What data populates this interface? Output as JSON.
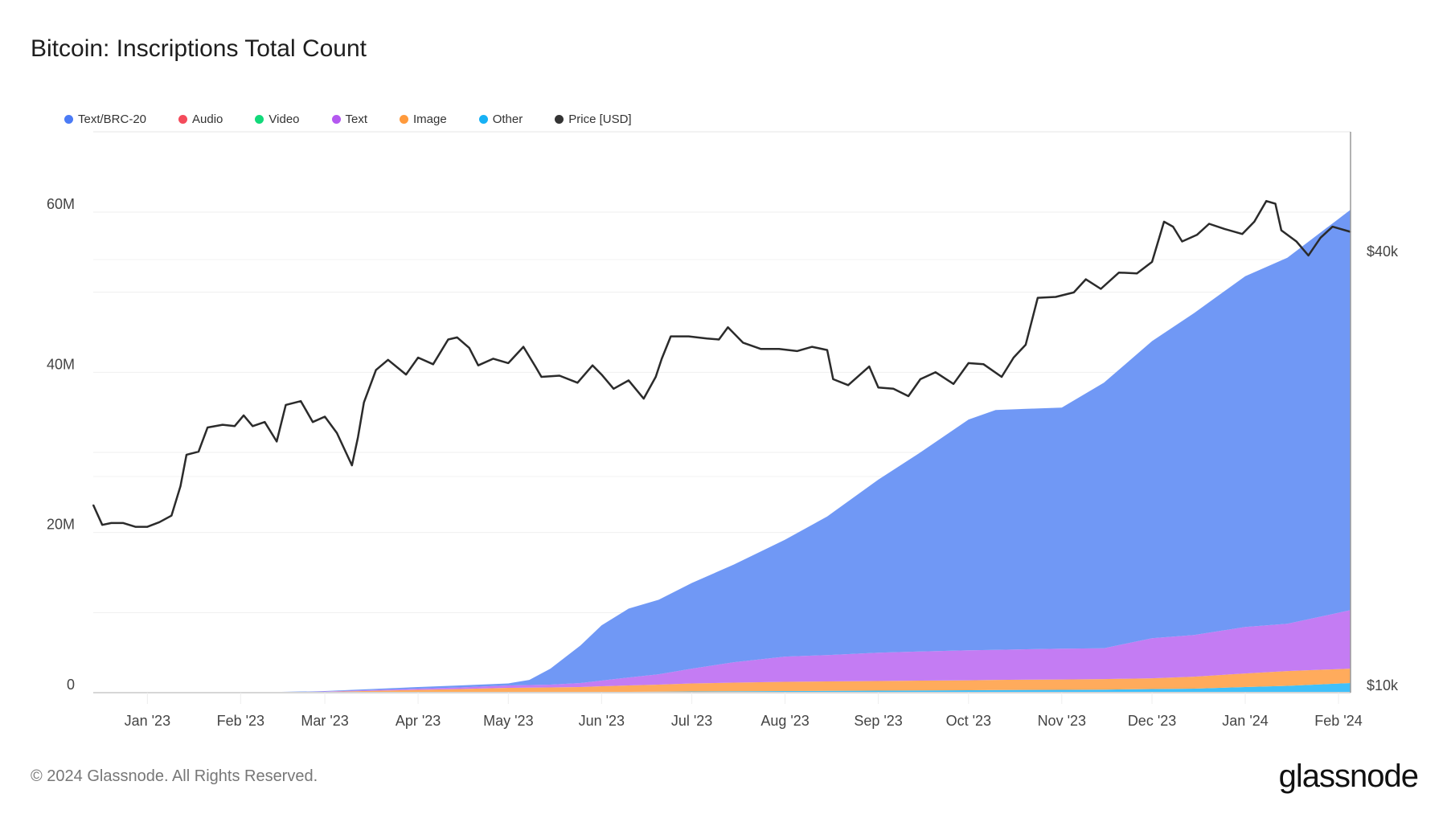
{
  "title": "Bitcoin: Inscriptions Total Count",
  "footer": "© 2024 Glassnode. All Rights Reserved.",
  "logo": "glassnode",
  "legend": [
    {
      "label": "Text/BRC-20",
      "color": "#4b7bf5"
    },
    {
      "label": "Audio",
      "color": "#f44b5b"
    },
    {
      "label": "Video",
      "color": "#12d97a"
    },
    {
      "label": "Text",
      "color": "#b458f0"
    },
    {
      "label": "Image",
      "color": "#ff9a3c"
    },
    {
      "label": "Other",
      "color": "#17b1f5"
    },
    {
      "label": "Price [USD]",
      "color": "#333333"
    }
  ],
  "chart_data": {
    "type": "area",
    "stacked": true,
    "title": "Bitcoin: Inscriptions Total Count",
    "x_range": [
      "2022-12-14",
      "2024-02-05"
    ],
    "x_ticks": [
      "Jan '23",
      "Feb '23",
      "Mar '23",
      "Apr '23",
      "May '23",
      "Jun '23",
      "Jul '23",
      "Aug '23",
      "Sep '23",
      "Oct '23",
      "Nov '23",
      "Dec '23",
      "Jan '24",
      "Feb '24"
    ],
    "x_tick_dates": [
      "2023-01-01",
      "2023-02-01",
      "2023-03-01",
      "2023-04-01",
      "2023-05-01",
      "2023-06-01",
      "2023-07-01",
      "2023-08-01",
      "2023-09-01",
      "2023-10-01",
      "2023-11-01",
      "2023-12-01",
      "2024-01-01",
      "2024-02-01"
    ],
    "y_left": {
      "unit": "M",
      "range": [
        0,
        70
      ],
      "ticks": [
        "0",
        "20M",
        "40M",
        "60M"
      ],
      "tick_values": [
        0,
        20,
        40,
        60
      ]
    },
    "y_right": {
      "scale": "log",
      "range_usd": [
        10000,
        60000
      ],
      "ticks": [
        "$10k",
        "$40k"
      ],
      "tick_values": [
        10000,
        40000
      ]
    },
    "grid": true,
    "legend_position": "top-left",
    "dates": [
      "2022-12-14",
      "2023-02-01",
      "2023-03-01",
      "2023-04-01",
      "2023-04-15",
      "2023-05-01",
      "2023-05-08",
      "2023-05-15",
      "2023-05-25",
      "2023-06-01",
      "2023-06-10",
      "2023-06-20",
      "2023-07-01",
      "2023-07-15",
      "2023-08-01",
      "2023-08-15",
      "2023-09-01",
      "2023-09-15",
      "2023-10-01",
      "2023-10-10",
      "2023-11-01",
      "2023-11-15",
      "2023-12-01",
      "2023-12-15",
      "2024-01-01",
      "2024-01-15",
      "2024-02-05"
    ],
    "series": [
      {
        "name": "Other",
        "color": "#40c0fa",
        "values": [
          0,
          0,
          0,
          0.02,
          0.03,
          0.05,
          0.05,
          0.05,
          0.06,
          0.08,
          0.1,
          0.12,
          0.15,
          0.18,
          0.2,
          0.22,
          0.25,
          0.28,
          0.3,
          0.32,
          0.35,
          0.38,
          0.45,
          0.5,
          0.7,
          0.85,
          1.2
        ]
      },
      {
        "name": "Image",
        "color": "#ffab5c",
        "values": [
          0,
          0,
          0.1,
          0.33,
          0.42,
          0.55,
          0.57,
          0.6,
          0.64,
          0.72,
          0.8,
          0.88,
          1.0,
          1.07,
          1.15,
          1.18,
          1.2,
          1.22,
          1.25,
          1.28,
          1.3,
          1.32,
          1.35,
          1.5,
          1.7,
          1.85,
          1.8
        ]
      },
      {
        "name": "Video",
        "color": "#12d97a",
        "values": [
          0,
          0,
          0,
          0,
          0,
          0,
          0,
          0,
          0,
          0,
          0,
          0,
          0,
          0,
          0,
          0,
          0,
          0,
          0,
          0,
          0,
          0,
          0,
          0,
          0,
          0,
          0
        ]
      },
      {
        "name": "Audio",
        "color": "#f44b5b",
        "values": [
          0,
          0,
          0,
          0,
          0,
          0,
          0,
          0,
          0,
          0,
          0,
          0,
          0,
          0,
          0,
          0,
          0,
          0,
          0,
          0,
          0,
          0,
          0,
          0,
          0,
          0,
          0
        ]
      },
      {
        "name": "Text",
        "color": "#c47cf3",
        "values": [
          0,
          0,
          0.05,
          0.15,
          0.2,
          0.3,
          0.33,
          0.35,
          0.5,
          0.7,
          1.0,
          1.3,
          1.85,
          2.55,
          3.15,
          3.3,
          3.55,
          3.65,
          3.75,
          3.75,
          3.85,
          3.85,
          5.0,
          5.2,
          5.8,
          5.9,
          7.3
        ]
      },
      {
        "name": "Text/BRC-20",
        "color": "#7098f5",
        "values": [
          0,
          0,
          0.05,
          0.2,
          0.25,
          0.25,
          0.65,
          2.0,
          4.7,
          6.9,
          8.6,
          9.3,
          10.7,
          12.2,
          14.6,
          17.3,
          21.6,
          24.85,
          28.8,
          29.95,
          30.1,
          33.15,
          37.1,
          40.2,
          43.8,
          45.7,
          50.0
        ]
      }
    ],
    "price": {
      "name": "Price [USD]",
      "color": "#2b2b2b",
      "dates": [
        "2022-12-14",
        "2022-12-17",
        "2022-12-20",
        "2022-12-24",
        "2022-12-28",
        "2023-01-01",
        "2023-01-05",
        "2023-01-09",
        "2023-01-12",
        "2023-01-14",
        "2023-01-18",
        "2023-01-21",
        "2023-01-26",
        "2023-01-30",
        "2023-02-02",
        "2023-02-05",
        "2023-02-09",
        "2023-02-13",
        "2023-02-16",
        "2023-02-21",
        "2023-02-25",
        "2023-03-01",
        "2023-03-05",
        "2023-03-10",
        "2023-03-12",
        "2023-03-14",
        "2023-03-18",
        "2023-03-22",
        "2023-03-28",
        "2023-04-01",
        "2023-04-06",
        "2023-04-11",
        "2023-04-14",
        "2023-04-18",
        "2023-04-21",
        "2023-04-26",
        "2023-05-01",
        "2023-05-06",
        "2023-05-10",
        "2023-05-12",
        "2023-05-18",
        "2023-05-24",
        "2023-05-29",
        "2023-06-01",
        "2023-06-05",
        "2023-06-10",
        "2023-06-15",
        "2023-06-19",
        "2023-06-21",
        "2023-06-24",
        "2023-06-30",
        "2023-07-06",
        "2023-07-10",
        "2023-07-13",
        "2023-07-18",
        "2023-07-24",
        "2023-07-30",
        "2023-08-05",
        "2023-08-10",
        "2023-08-15",
        "2023-08-17",
        "2023-08-22",
        "2023-08-29",
        "2023-09-01",
        "2023-09-06",
        "2023-09-11",
        "2023-09-15",
        "2023-09-20",
        "2023-09-26",
        "2023-10-01",
        "2023-10-06",
        "2023-10-12",
        "2023-10-16",
        "2023-10-20",
        "2023-10-24",
        "2023-10-30",
        "2023-11-05",
        "2023-11-09",
        "2023-11-14",
        "2023-11-20",
        "2023-11-26",
        "2023-12-01",
        "2023-12-05",
        "2023-12-08",
        "2023-12-11",
        "2023-12-16",
        "2023-12-20",
        "2023-12-25",
        "2023-12-31",
        "2024-01-04",
        "2024-01-08",
        "2024-01-11",
        "2024-01-13",
        "2024-01-18",
        "2024-01-22",
        "2024-01-26",
        "2024-01-30",
        "2024-02-05"
      ],
      "values": [
        17800,
        16700,
        16800,
        16800,
        16600,
        16600,
        16850,
        17200,
        18900,
        20900,
        21100,
        22800,
        23000,
        22900,
        23700,
        22900,
        23200,
        21800,
        24500,
        24800,
        23200,
        23600,
        22400,
        20200,
        22100,
        24700,
        27400,
        28300,
        27000,
        28500,
        27900,
        30200,
        30400,
        29400,
        27800,
        28400,
        28000,
        29500,
        27700,
        26800,
        26900,
        26300,
        27800,
        27000,
        25800,
        26500,
        25000,
        26800,
        28400,
        30500,
        30500,
        30300,
        30200,
        31400,
        29900,
        29300,
        29300,
        29100,
        29500,
        29200,
        26600,
        26100,
        27700,
        25900,
        25800,
        25200,
        26600,
        27200,
        26200,
        28000,
        27900,
        26800,
        28500,
        29700,
        34500,
        34600,
        35100,
        36600,
        35500,
        37400,
        37300,
        38700,
        44000,
        43300,
        41300,
        42200,
        43700,
        43000,
        42300,
        44000,
        47000,
        46600,
        42800,
        41300,
        39500,
        41800,
        43300,
        42600
      ]
    }
  }
}
